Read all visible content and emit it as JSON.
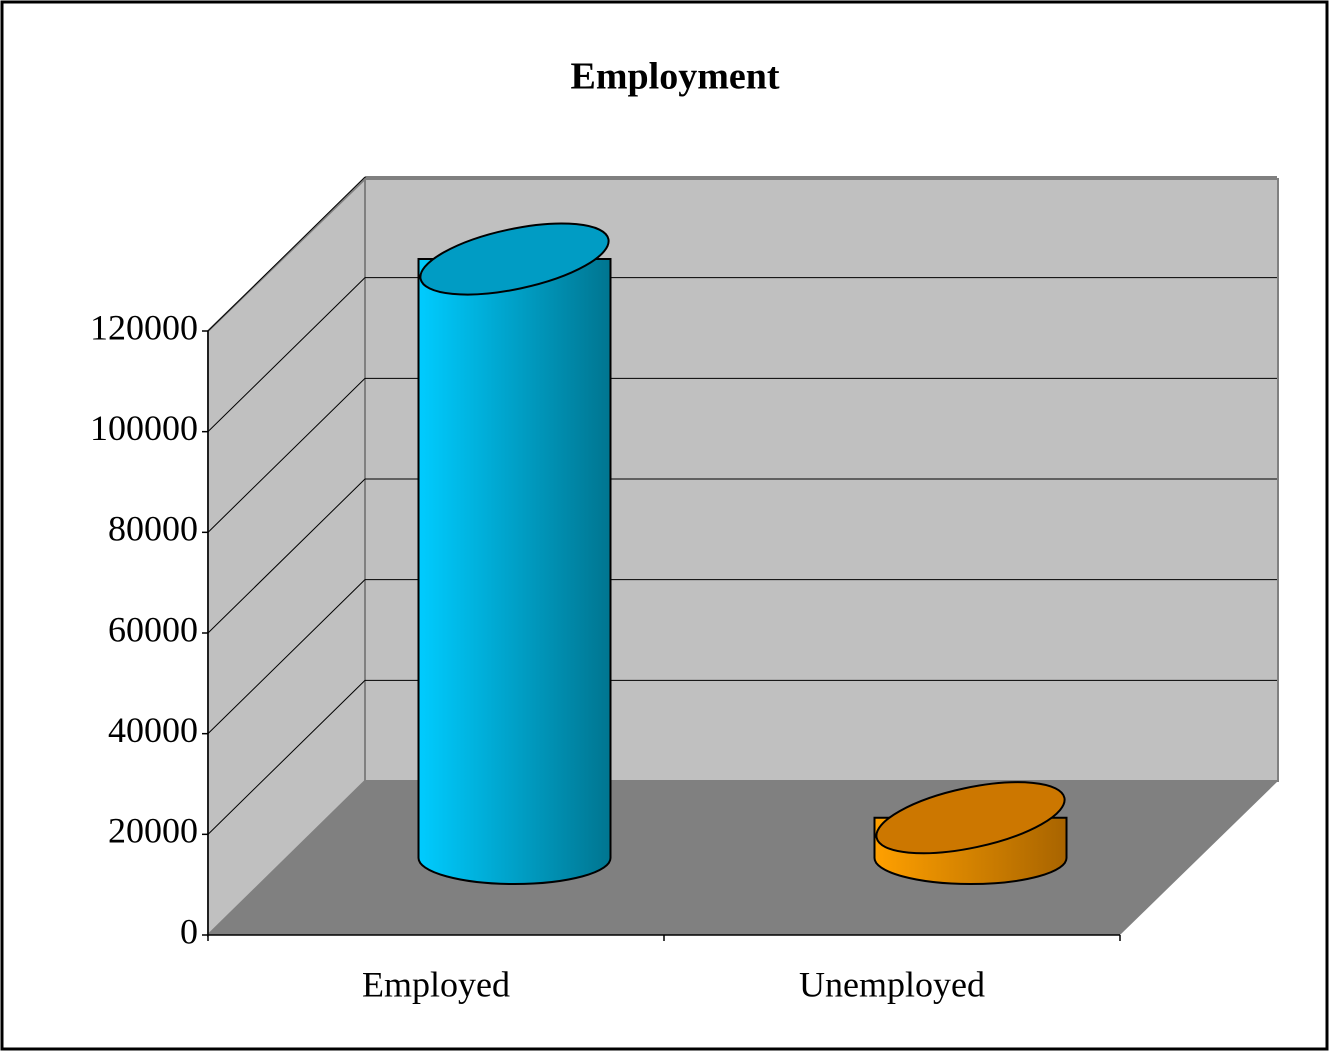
{
  "chart_data": {
    "type": "bar3d",
    "title": "Employment",
    "categories": [
      "Employed",
      "Unemployed"
    ],
    "values": [
      119000,
      8000
    ],
    "colors": [
      "#00b8e6",
      "#f08c00"
    ],
    "ylim": [
      0,
      120000
    ],
    "yticks": [
      0,
      20000,
      40000,
      60000,
      80000,
      100000,
      120000
    ],
    "grid": true
  }
}
